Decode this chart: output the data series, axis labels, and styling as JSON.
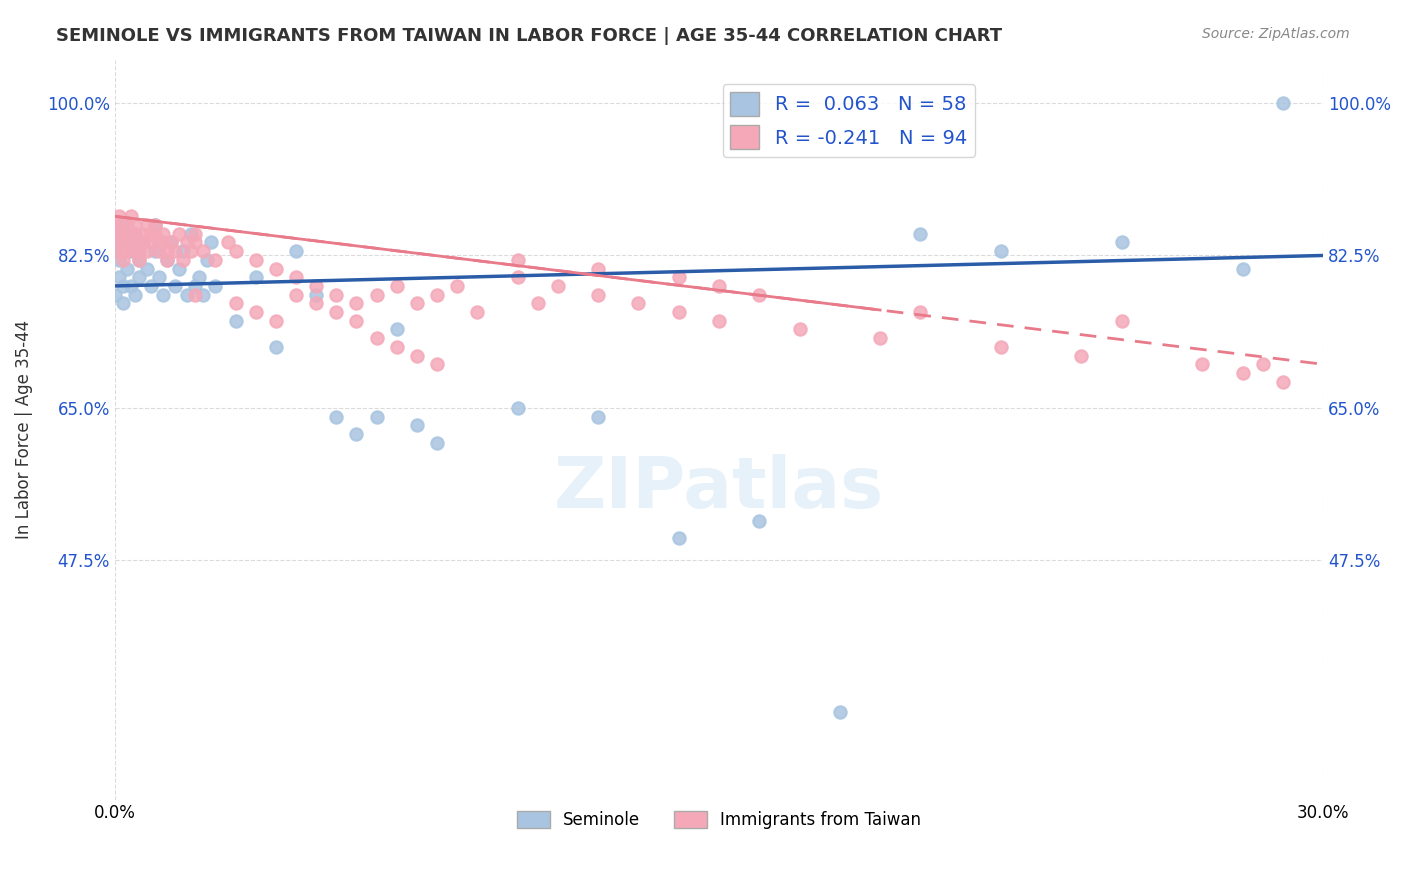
{
  "title": "SEMINOLE VS IMMIGRANTS FROM TAIWAN IN LABOR FORCE | AGE 35-44 CORRELATION CHART",
  "source": "Source: ZipAtlas.com",
  "xlabel": "",
  "ylabel": "In Labor Force | Age 35-44",
  "xlim": [
    0.0,
    0.3
  ],
  "ylim": [
    0.2,
    1.05
  ],
  "yticks": [
    0.475,
    0.65,
    0.825,
    1.0
  ],
  "ytick_labels": [
    "47.5%",
    "65.0%",
    "82.5%",
    "100.0%"
  ],
  "xtick_labels": [
    "0.0%",
    "30.0%"
  ],
  "xticks": [
    0.0,
    0.3
  ],
  "r_seminole": 0.063,
  "n_seminole": 58,
  "r_taiwan": -0.241,
  "n_taiwan": 94,
  "seminole_color": "#a8c4e0",
  "taiwan_color": "#f4a8b8",
  "seminole_line_color": "#2a5ca8",
  "taiwan_line_color": "#e87a8a",
  "seminole_scatter_x": [
    0.0,
    0.0,
    0.0,
    0.001,
    0.001,
    0.001,
    0.002,
    0.002,
    0.002,
    0.003,
    0.003,
    0.004,
    0.004,
    0.005,
    0.005,
    0.006,
    0.006,
    0.007,
    0.008,
    0.009,
    0.01,
    0.01,
    0.011,
    0.012,
    0.013,
    0.014,
    0.015,
    0.016,
    0.017,
    0.018,
    0.019,
    0.02,
    0.021,
    0.022,
    0.023,
    0.024,
    0.025,
    0.03,
    0.035,
    0.04,
    0.045,
    0.05,
    0.055,
    0.06,
    0.065,
    0.07,
    0.075,
    0.08,
    0.1,
    0.12,
    0.14,
    0.16,
    0.18,
    0.2,
    0.22,
    0.25,
    0.28,
    0.29
  ],
  "seminole_scatter_y": [
    0.83,
    0.84,
    0.78,
    0.85,
    0.82,
    0.8,
    0.86,
    0.79,
    0.77,
    0.84,
    0.81,
    0.83,
    0.79,
    0.85,
    0.78,
    0.82,
    0.8,
    0.84,
    0.81,
    0.79,
    0.83,
    0.86,
    0.8,
    0.78,
    0.82,
    0.84,
    0.79,
    0.81,
    0.83,
    0.78,
    0.85,
    0.79,
    0.8,
    0.78,
    0.82,
    0.84,
    0.79,
    0.75,
    0.8,
    0.72,
    0.83,
    0.78,
    0.64,
    0.62,
    0.64,
    0.74,
    0.63,
    0.61,
    0.65,
    0.64,
    0.5,
    0.52,
    0.3,
    0.85,
    0.83,
    0.84,
    0.81,
    1.0
  ],
  "taiwan_scatter_x": [
    0.0,
    0.0,
    0.0,
    0.0,
    0.001,
    0.001,
    0.001,
    0.002,
    0.002,
    0.002,
    0.003,
    0.003,
    0.003,
    0.004,
    0.004,
    0.004,
    0.005,
    0.005,
    0.005,
    0.006,
    0.006,
    0.006,
    0.007,
    0.007,
    0.008,
    0.008,
    0.009,
    0.009,
    0.01,
    0.01,
    0.011,
    0.011,
    0.012,
    0.012,
    0.013,
    0.013,
    0.014,
    0.015,
    0.016,
    0.017,
    0.018,
    0.019,
    0.02,
    0.02,
    0.022,
    0.025,
    0.028,
    0.03,
    0.035,
    0.04,
    0.045,
    0.05,
    0.055,
    0.06,
    0.065,
    0.07,
    0.075,
    0.08,
    0.085,
    0.09,
    0.1,
    0.11,
    0.12,
    0.13,
    0.14,
    0.15,
    0.17,
    0.19,
    0.2,
    0.22,
    0.24,
    0.25,
    0.27,
    0.28,
    0.29,
    0.285,
    0.1,
    0.12,
    0.14,
    0.15,
    0.16,
    0.105,
    0.02,
    0.03,
    0.035,
    0.04,
    0.045,
    0.05,
    0.055,
    0.06,
    0.065,
    0.07,
    0.075,
    0.08
  ],
  "taiwan_scatter_y": [
    0.86,
    0.85,
    0.84,
    0.83,
    0.87,
    0.86,
    0.85,
    0.84,
    0.83,
    0.82,
    0.86,
    0.85,
    0.83,
    0.87,
    0.85,
    0.84,
    0.86,
    0.85,
    0.83,
    0.84,
    0.83,
    0.82,
    0.85,
    0.84,
    0.86,
    0.83,
    0.85,
    0.84,
    0.86,
    0.85,
    0.84,
    0.83,
    0.85,
    0.84,
    0.83,
    0.82,
    0.84,
    0.83,
    0.85,
    0.82,
    0.84,
    0.83,
    0.85,
    0.84,
    0.83,
    0.82,
    0.84,
    0.83,
    0.82,
    0.81,
    0.8,
    0.79,
    0.78,
    0.77,
    0.78,
    0.79,
    0.77,
    0.78,
    0.79,
    0.76,
    0.8,
    0.79,
    0.78,
    0.77,
    0.76,
    0.75,
    0.74,
    0.73,
    0.76,
    0.72,
    0.71,
    0.75,
    0.7,
    0.69,
    0.68,
    0.7,
    0.82,
    0.81,
    0.8,
    0.79,
    0.78,
    0.77,
    0.78,
    0.77,
    0.76,
    0.75,
    0.78,
    0.77,
    0.76,
    0.75,
    0.73,
    0.72,
    0.71,
    0.7
  ],
  "watermark": "ZIPatlas",
  "background_color": "#ffffff",
  "grid_color": "#cccccc"
}
